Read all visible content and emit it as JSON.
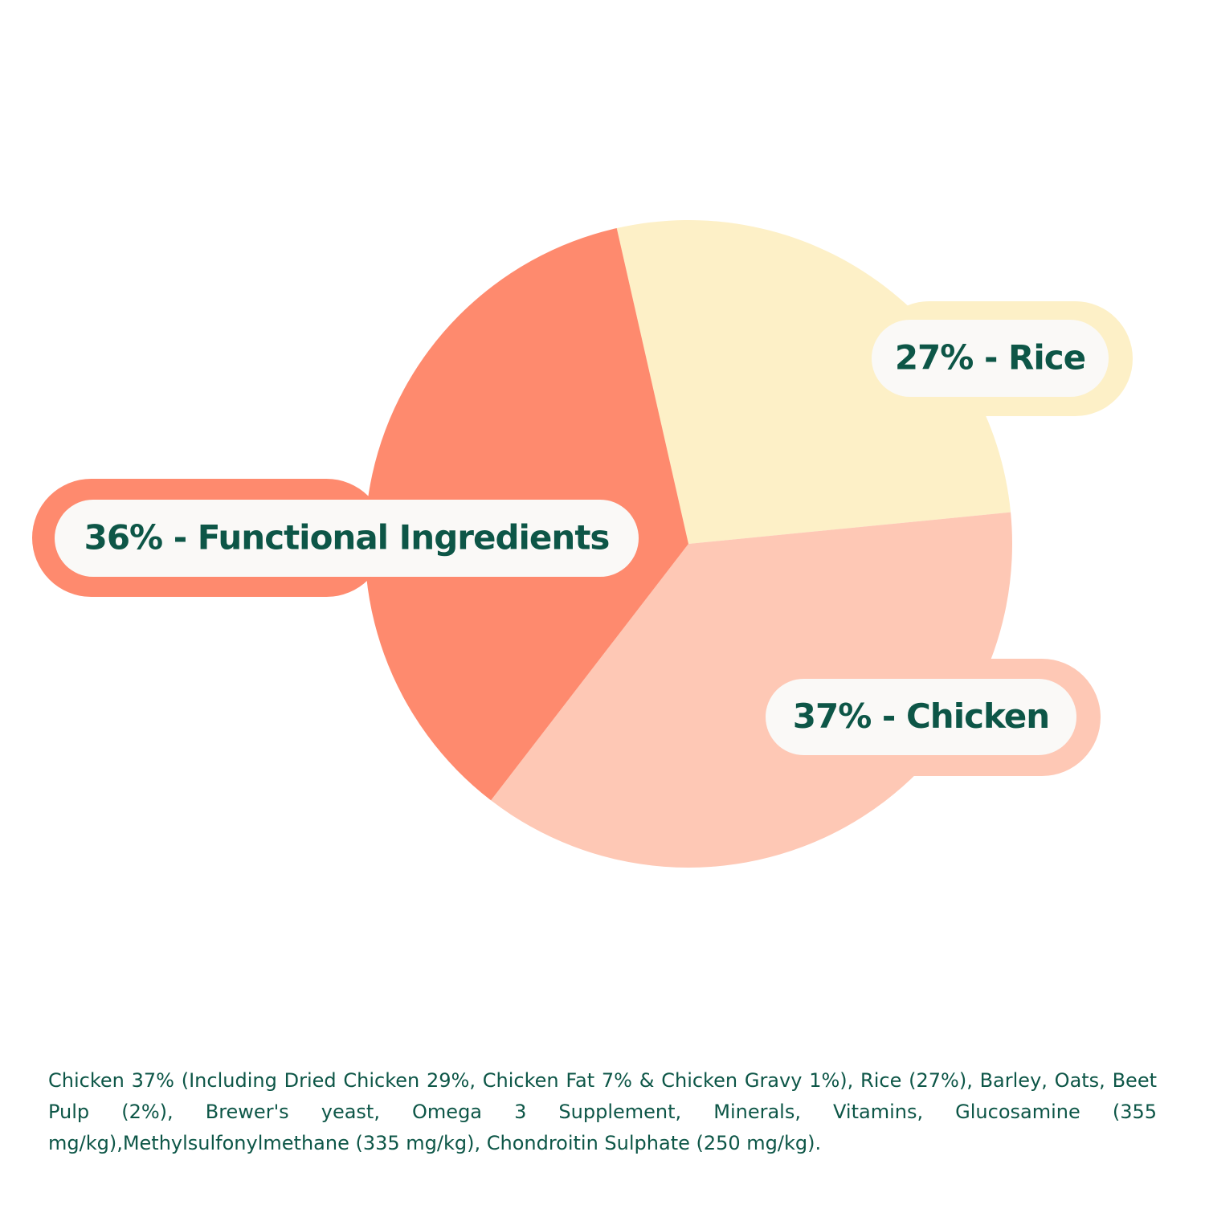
{
  "chart_data": {
    "type": "pie",
    "values": [
      27,
      37,
      36
    ],
    "value_labels": [
      "27% - Rice",
      "37% - Chicken",
      "36% - Functional Ingredients"
    ],
    "colors": [
      "#fdf0c7",
      "#fec8b5",
      "#fe8a6e"
    ],
    "footnote": "Chicken 37% (Including Dried Chicken 29%, Chicken Fat 7% & Chicken Gravy 1%), Rice (27%), Barley, Oats, Beet Pulp (2%), Brewer's yeast, Omega 3 Supplement, Minerals, Vitamins, Glucosamine (355 mg/kg),Methylsulfonylmethane (335 mg/kg), Chondroitin Sulphate (250 mg/kg)."
  }
}
